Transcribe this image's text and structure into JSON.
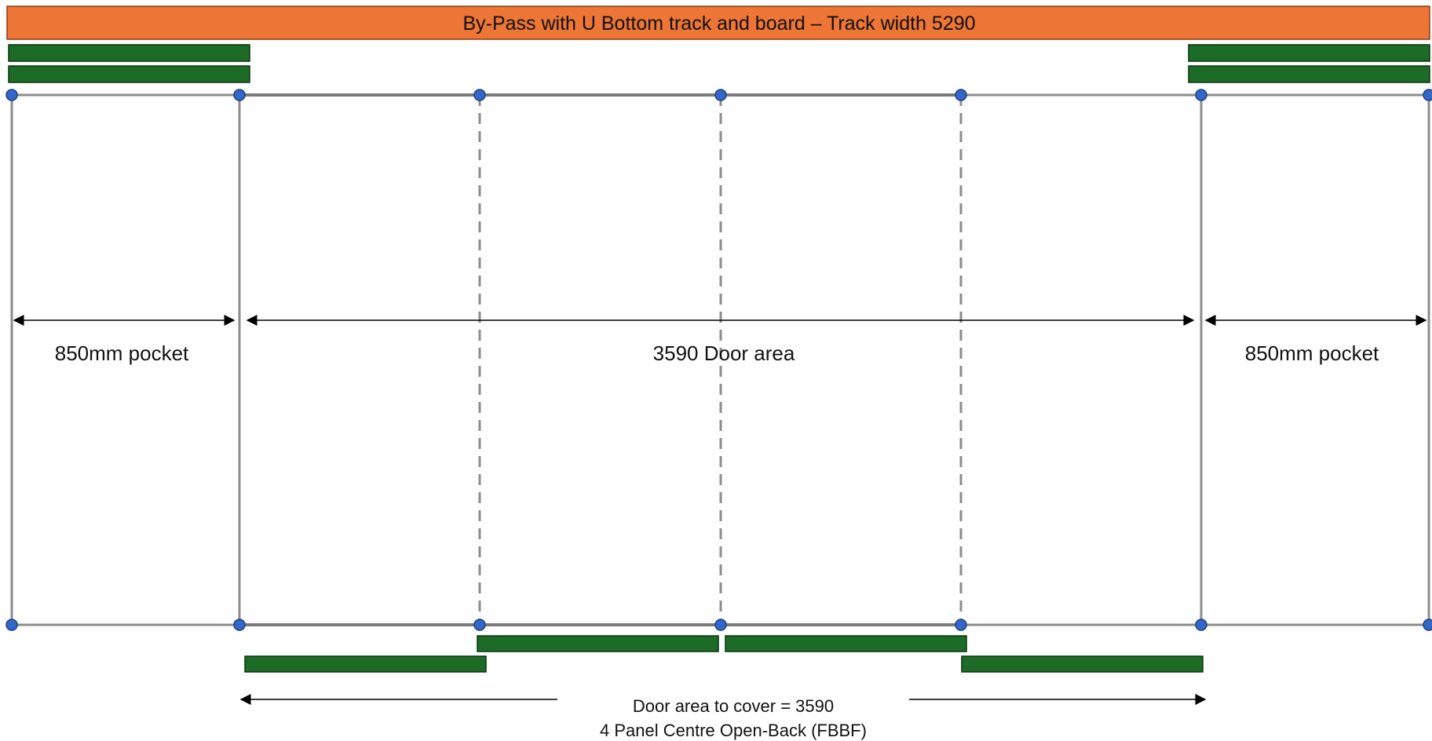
{
  "title": "By-Pass with U Bottom track and board – Track width 5290",
  "labels": {
    "pocket_left": "850mm pocket",
    "door_area": "3590 Door area",
    "pocket_right": "850mm pocket",
    "cover": "Door area to cover = 3590",
    "config": "4 Panel Centre Open-Back (FBBF)"
  },
  "colors": {
    "title_bar": "#ED7536",
    "panel": "#1C6B26",
    "node": "#3468C7",
    "frame": "#8C8C8C"
  }
}
